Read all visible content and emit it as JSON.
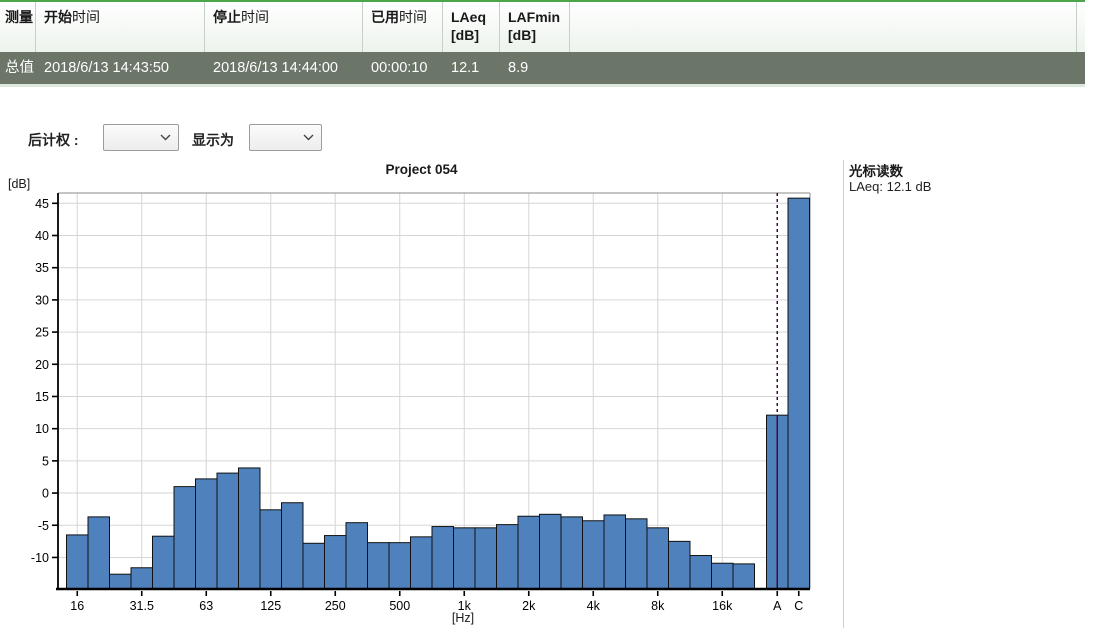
{
  "accent": {
    "top_line_color": "#4ba64b"
  },
  "table": {
    "headers": [
      {
        "bold": "测量",
        "normal": "",
        "line2": ""
      },
      {
        "bold": "开始",
        "normal": "时间",
        "line2": ""
      },
      {
        "bold": "停止",
        "normal": "时间",
        "line2": ""
      },
      {
        "bold": "已用",
        "normal": "时间",
        "line2": ""
      },
      {
        "bold": "LAeq",
        "normal": "",
        "line2": "[dB]"
      },
      {
        "bold": "LAFmin",
        "normal": "",
        "line2": "[dB]"
      }
    ],
    "row": {
      "label": "总值",
      "start_time": "2018/6/13 14:43:50",
      "stop_time": "2018/6/13 14:44:00",
      "elapsed": "00:00:10",
      "laeq": "12.1",
      "lafmin": "8.9"
    }
  },
  "controls": {
    "weighting_label": "后计权 :",
    "weighting_value": "",
    "display_label": "显示为",
    "display_value": ""
  },
  "chart_data": {
    "type": "bar",
    "title": "Project 054",
    "ylabel": "[dB]",
    "xlabel": "[Hz]",
    "ylim": [
      -14.9,
      46.6
    ],
    "yticks": [
      45,
      40,
      35,
      30,
      25,
      20,
      15,
      10,
      5,
      0,
      -5,
      -10
    ],
    "grid": true,
    "categories": [
      "16",
      "20",
      "25",
      "31.5",
      "40",
      "50",
      "63",
      "80",
      "100",
      "125",
      "160",
      "200",
      "250",
      "315",
      "400",
      "500",
      "630",
      "800",
      "1k",
      "1.25k",
      "1.6k",
      "2k",
      "2.5k",
      "3.15k",
      "4k",
      "5k",
      "6.3k",
      "8k",
      "10k",
      "12.5k",
      "16k",
      "20k"
    ],
    "values": [
      -6.5,
      -3.7,
      -12.6,
      -11.6,
      -6.7,
      1.0,
      2.2,
      3.1,
      3.9,
      -2.6,
      -1.5,
      -7.8,
      -6.6,
      -4.6,
      -7.7,
      -7.7,
      -6.8,
      -5.2,
      -5.4,
      -5.4,
      -4.9,
      -3.6,
      -3.3,
      -3.7,
      -4.3,
      -3.4,
      -4.0,
      -5.4,
      -7.5,
      -9.7,
      -10.9,
      -11.0
    ],
    "xtick_labels": [
      "16",
      "31.5",
      "63",
      "125",
      "250",
      "500",
      "1k",
      "2k",
      "4k",
      "8k",
      "16k"
    ],
    "xtick_band_index": [
      0,
      3,
      6,
      9,
      12,
      15,
      18,
      21,
      24,
      27,
      30
    ],
    "extra_bars": [
      {
        "label": "A",
        "value": 12.1
      },
      {
        "label": "C",
        "value": 45.8
      }
    ],
    "bar_color": "#4f81bd",
    "bar_stroke": "#111111",
    "grid_color": "#d6d6d6",
    "cursor": {
      "on_bar": "A",
      "color": "#3c0e3c"
    }
  },
  "cursor_panel": {
    "title": "光标读数",
    "reading": "LAeq: 12.1 dB"
  }
}
